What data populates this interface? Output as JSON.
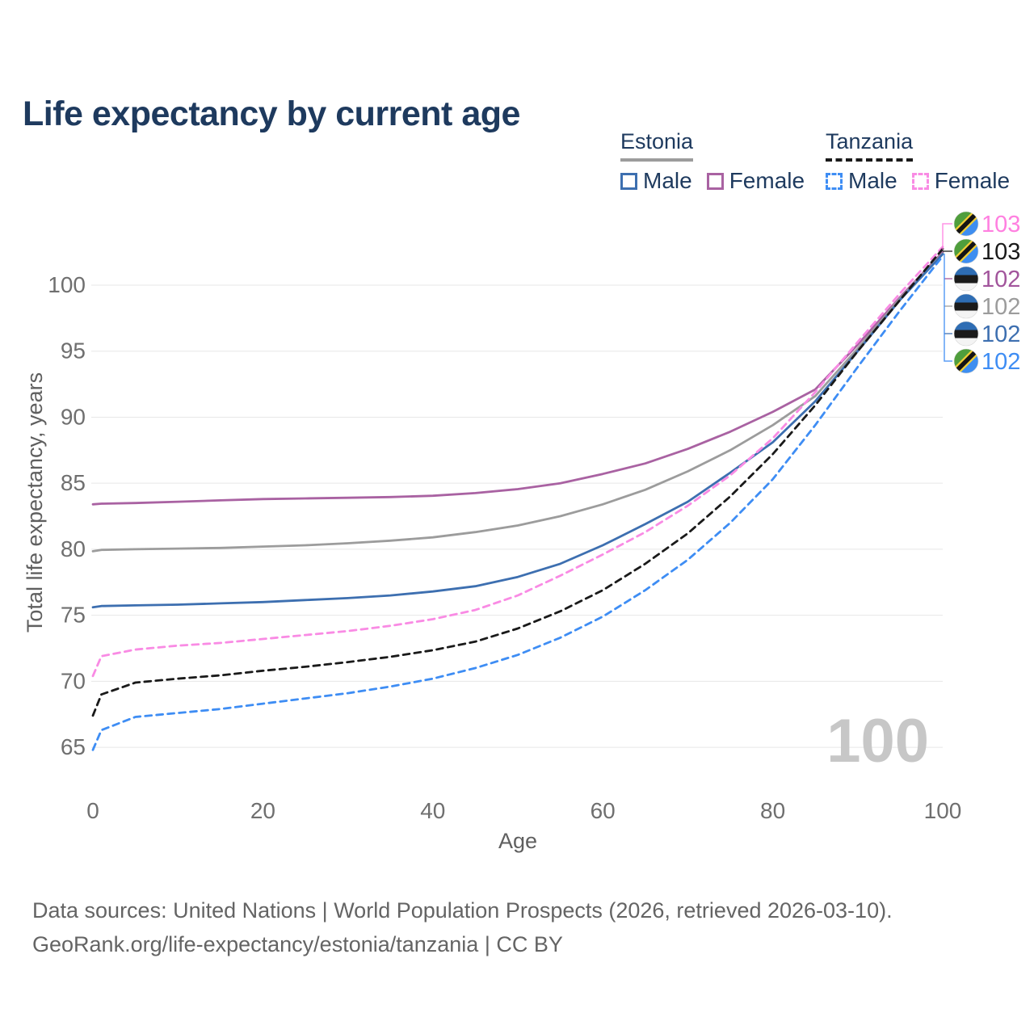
{
  "title": "Life expectancy by current age",
  "legend": {
    "groups": [
      {
        "name": "Estonia",
        "line_style": "solid",
        "line_color": "#9c9c9c",
        "items": [
          {
            "label": "Male",
            "color": "#3d6fb0"
          },
          {
            "label": "Female",
            "color": "#a962a2"
          }
        ]
      },
      {
        "name": "Tanzania",
        "line_style": "dashed",
        "line_color": "#1a1a1a",
        "items": [
          {
            "label": "Male",
            "color": "#3e8df4"
          },
          {
            "label": "Female",
            "color": "#f98be4"
          }
        ]
      }
    ]
  },
  "chart_data": {
    "type": "line",
    "title": "Life expectancy by current age",
    "xlabel": "Age",
    "ylabel": "Total life expectancy, years",
    "xlim": [
      0,
      100
    ],
    "ylim": [
      64,
      103.5
    ],
    "x_ticks": [
      0,
      20,
      40,
      60,
      80,
      100
    ],
    "y_ticks": [
      65,
      70,
      75,
      80,
      85,
      90,
      95,
      100
    ],
    "grid": "horizontal",
    "watermark": "100",
    "colors": {
      "estonia_male": "#3d6fb0",
      "estonia_female": "#a962a2",
      "estonia_total": "#9c9c9c",
      "tanzania_male": "#3e8df4",
      "tanzania_female": "#f98be4",
      "tanzania_total": "#1a1a1a",
      "gridline": "#e7e7e7",
      "tick_text": "#6f6f6f",
      "axis_title_text": "#5f5f5f",
      "watermark_text": "#c7c7c7"
    },
    "ages": [
      0,
      1,
      5,
      10,
      15,
      20,
      25,
      30,
      35,
      40,
      45,
      50,
      55,
      60,
      65,
      70,
      75,
      80,
      85,
      90,
      95,
      100
    ],
    "series": [
      {
        "id": "estonia-female",
        "name": "Estonia Female",
        "style": "solid",
        "color": "#a962a2",
        "values": [
          83.4,
          83.45,
          83.5,
          83.6,
          83.7,
          83.8,
          83.85,
          83.9,
          83.95,
          84.05,
          84.25,
          84.55,
          85.0,
          85.7,
          86.5,
          87.6,
          88.9,
          90.4,
          92.1,
          95.5,
          99.1,
          102.5
        ]
      },
      {
        "id": "estonia-total",
        "name": "Estonia",
        "style": "solid",
        "color": "#9c9c9c",
        "values": [
          79.85,
          79.95,
          80.0,
          80.05,
          80.1,
          80.2,
          80.3,
          80.45,
          80.65,
          80.9,
          81.3,
          81.8,
          82.5,
          83.4,
          84.5,
          85.9,
          87.5,
          89.4,
          91.6,
          95.2,
          99.0,
          102.4
        ]
      },
      {
        "id": "estonia-male",
        "name": "Estonia Male",
        "style": "solid",
        "color": "#3d6fb0",
        "values": [
          75.6,
          75.7,
          75.75,
          75.8,
          75.9,
          76.0,
          76.15,
          76.3,
          76.5,
          76.8,
          77.2,
          77.9,
          78.9,
          80.3,
          81.9,
          83.6,
          85.8,
          88.1,
          91.2,
          95.0,
          98.9,
          102.35
        ]
      },
      {
        "id": "tanzania-female",
        "name": "Tanzania Female",
        "style": "dashed",
        "color": "#f98be4",
        "values": [
          70.4,
          71.9,
          72.4,
          72.7,
          72.9,
          73.2,
          73.5,
          73.8,
          74.2,
          74.7,
          75.4,
          76.5,
          78.0,
          79.6,
          81.3,
          83.3,
          85.6,
          88.4,
          91.9,
          95.7,
          99.4,
          102.9
        ]
      },
      {
        "id": "tanzania-total",
        "name": "Tanzania",
        "style": "dashed",
        "color": "#1a1a1a",
        "values": [
          67.4,
          69.0,
          69.9,
          70.2,
          70.45,
          70.8,
          71.1,
          71.45,
          71.85,
          72.35,
          73.0,
          74.0,
          75.3,
          76.9,
          78.9,
          81.2,
          84.0,
          87.2,
          90.9,
          95.0,
          98.9,
          102.75
        ]
      },
      {
        "id": "tanzania-male",
        "name": "Tanzania Male",
        "style": "dashed",
        "color": "#3e8df4",
        "values": [
          64.8,
          66.3,
          67.3,
          67.6,
          67.9,
          68.3,
          68.7,
          69.1,
          69.6,
          70.2,
          71.0,
          72.0,
          73.3,
          74.9,
          76.9,
          79.2,
          82.0,
          85.3,
          89.4,
          93.8,
          98.1,
          102.2
        ]
      }
    ],
    "end_labels": [
      {
        "label": "103",
        "color": "#ff80e0",
        "flag": "tanzania",
        "series": "tanzania-female"
      },
      {
        "label": "103",
        "color": "#1a1a1a",
        "flag": "tanzania",
        "series": "tanzania-total"
      },
      {
        "label": "102",
        "color": "#a2559c",
        "flag": "estonia",
        "series": "estonia-female"
      },
      {
        "label": "102",
        "color": "#9c9c9c",
        "flag": "estonia",
        "series": "estonia-total"
      },
      {
        "label": "102",
        "color": "#3d6fb0",
        "flag": "estonia",
        "series": "estonia-male"
      },
      {
        "label": "102",
        "color": "#3e8df4",
        "flag": "tanzania",
        "series": "tanzania-male"
      }
    ],
    "flag_colors": {
      "estonia": {
        "top": "#2e6db4",
        "middle": "#1b1b1b",
        "bottom": "#f4f4f4"
      },
      "tanzania": {
        "green": "#4f9e3c",
        "blue": "#3e8ef0",
        "yellow": "#f2cf35",
        "black": "#141414"
      }
    }
  },
  "footer": {
    "line1": "Data sources: United Nations | World Population Prospects (2026, retrieved 2026-03-10).",
    "line2": "GeoRank.org/life-expectancy/estonia/tanzania | CC BY"
  }
}
